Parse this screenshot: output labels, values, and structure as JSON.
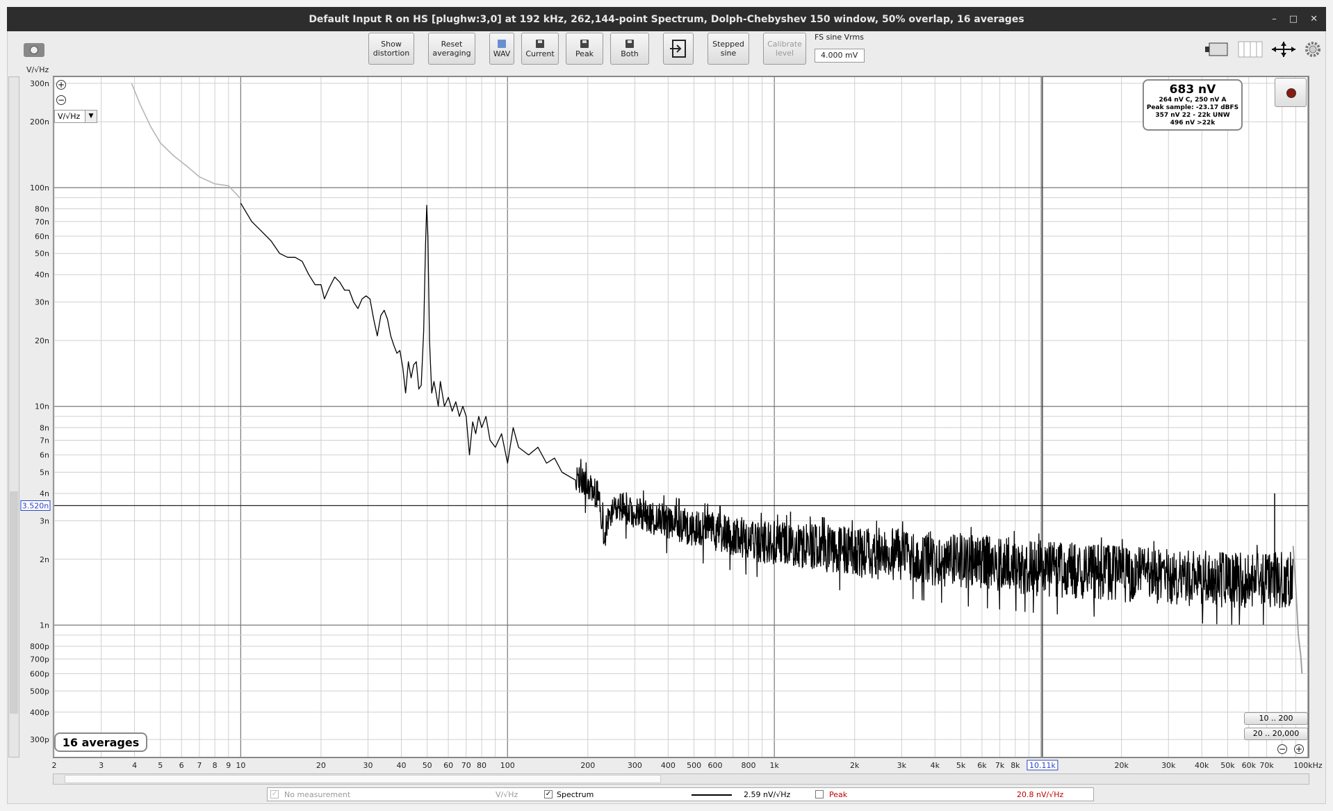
{
  "window": {
    "title": "Default Input R on HS [plughw:3,0] at 192 kHz, 262,144-point Spectrum, Dolph-Chebyshev 150 window, 50% overlap, 16 averages",
    "controls": [
      "–",
      "□",
      "✕"
    ]
  },
  "toolbar": {
    "show_distortion": [
      "Show",
      "distortion"
    ],
    "reset_averaging": [
      "Reset",
      "averaging"
    ],
    "wav": "WAV",
    "current": "Current",
    "peak": "Peak",
    "both": "Both",
    "stepped_sine": [
      "Stepped",
      "sine"
    ],
    "calibrate_level": [
      "Calibrate",
      "level"
    ],
    "fs_label": "FS sine Vrms",
    "fs_value": "4.000 mV"
  },
  "graph": {
    "y_unit": "V/√Hz",
    "units_select": "V/√Hz",
    "cursor_y_readout": "3.520n",
    "cursor_x_readout": "10.11k",
    "averages_badge": "16 averages",
    "range_buttons": [
      "10 .. 200",
      "20 .. 20,000"
    ]
  },
  "info_box": {
    "main": "683 nV",
    "lines": [
      "264 nV C, 250 nV A",
      "Peak sample: -23.17 dBFS",
      "357 nV 22 - 22k UNW",
      "496 nV >22k"
    ]
  },
  "legend": {
    "no_measurement": "No measurement",
    "no_measurement_unit": "V/√Hz",
    "spectrum": "Spectrum",
    "spectrum_value": "2.59 nV/√Hz",
    "peak": "Peak",
    "peak_value": "20.8 nV/√Hz",
    "colors": {
      "spectrum": "#000000",
      "peak": "#c00000",
      "disabled": "#999999"
    }
  },
  "chart_data": {
    "type": "line",
    "scale": {
      "x": "log",
      "y": "log"
    },
    "xlim": [
      2,
      100000
    ],
    "ylim": [
      2.5e-10,
      3.2e-07
    ],
    "x_ticks": [
      {
        "v": 2,
        "t": "2"
      },
      {
        "v": 3,
        "t": "3"
      },
      {
        "v": 4,
        "t": "4"
      },
      {
        "v": 5,
        "t": "5"
      },
      {
        "v": 6,
        "t": "6"
      },
      {
        "v": 7,
        "t": "7"
      },
      {
        "v": 8,
        "t": "8"
      },
      {
        "v": 9,
        "t": "9"
      },
      {
        "v": 10,
        "t": "10"
      },
      {
        "v": 20,
        "t": "20"
      },
      {
        "v": 30,
        "t": "30"
      },
      {
        "v": 40,
        "t": "40"
      },
      {
        "v": 50,
        "t": "50"
      },
      {
        "v": 60,
        "t": "60"
      },
      {
        "v": 70,
        "t": "70"
      },
      {
        "v": 80,
        "t": "80"
      },
      {
        "v": 100,
        "t": "100"
      },
      {
        "v": 200,
        "t": "200"
      },
      {
        "v": 300,
        "t": "300"
      },
      {
        "v": 400,
        "t": "400"
      },
      {
        "v": 500,
        "t": "500"
      },
      {
        "v": 600,
        "t": "600"
      },
      {
        "v": 800,
        "t": "800"
      },
      {
        "v": 1000,
        "t": "1k"
      },
      {
        "v": 2000,
        "t": "2k"
      },
      {
        "v": 3000,
        "t": "3k"
      },
      {
        "v": 4000,
        "t": "4k"
      },
      {
        "v": 5000,
        "t": "5k"
      },
      {
        "v": 6000,
        "t": "6k"
      },
      {
        "v": 7000,
        "t": "7k"
      },
      {
        "v": 8000,
        "t": "8k"
      },
      {
        "v": 20000,
        "t": "20k"
      },
      {
        "v": 30000,
        "t": "30k"
      },
      {
        "v": 40000,
        "t": "40k"
      },
      {
        "v": 50000,
        "t": "50k"
      },
      {
        "v": 60000,
        "t": "60k"
      },
      {
        "v": 70000,
        "t": "70k"
      },
      {
        "v": 100000,
        "t": "100kHz"
      }
    ],
    "y_ticks": [
      {
        "v": 3e-07,
        "t": "300n"
      },
      {
        "v": 2e-07,
        "t": "200n"
      },
      {
        "v": 1e-07,
        "t": "100n"
      },
      {
        "v": 8e-08,
        "t": "80n"
      },
      {
        "v": 7e-08,
        "t": "70n"
      },
      {
        "v": 6e-08,
        "t": "60n"
      },
      {
        "v": 5e-08,
        "t": "50n"
      },
      {
        "v": 4e-08,
        "t": "40n"
      },
      {
        "v": 3e-08,
        "t": "30n"
      },
      {
        "v": 2e-08,
        "t": "20n"
      },
      {
        "v": 1e-08,
        "t": "10n"
      },
      {
        "v": 8e-09,
        "t": "8n"
      },
      {
        "v": 7e-09,
        "t": "7n"
      },
      {
        "v": 6e-09,
        "t": "6n"
      },
      {
        "v": 5e-09,
        "t": "5n"
      },
      {
        "v": 4e-09,
        "t": "4n"
      },
      {
        "v": 3e-09,
        "t": "3n"
      },
      {
        "v": 2e-09,
        "t": "2n"
      },
      {
        "v": 1e-09,
        "t": "1n"
      },
      {
        "v": 8e-10,
        "t": "800p"
      },
      {
        "v": 7e-10,
        "t": "700p"
      },
      {
        "v": 6e-10,
        "t": "600p"
      },
      {
        "v": 5e-10,
        "t": "500p"
      },
      {
        "v": 4e-10,
        "t": "400p"
      },
      {
        "v": 3e-10,
        "t": "300p"
      }
    ],
    "cursor": {
      "x": 10110,
      "y": 3.52e-09
    },
    "series": [
      {
        "name": "Spectrum",
        "color": "#000000",
        "low_freq_grey": [
          [
            3.9,
            3e-07
          ],
          [
            4.2,
            2.4e-07
          ],
          [
            4.6,
            1.9e-07
          ],
          [
            5.0,
            1.6e-07
          ],
          [
            5.6,
            1.4e-07
          ],
          [
            6.3,
            1.25e-07
          ],
          [
            7.0,
            1.12e-07
          ],
          [
            8.0,
            1.04e-07
          ],
          [
            9.0,
            1.02e-07
          ],
          [
            10.0,
            8.9e-08
          ]
        ],
        "points": [
          [
            10,
            8.5e-08
          ],
          [
            11,
            7e-08
          ],
          [
            12,
            6.3e-08
          ],
          [
            13,
            5.7e-08
          ],
          [
            14,
            5e-08
          ],
          [
            15,
            4.8e-08
          ],
          [
            16,
            4.8e-08
          ],
          [
            17,
            4.6e-08
          ],
          [
            18,
            4e-08
          ],
          [
            19,
            3.6e-08
          ],
          [
            20,
            3.6e-08
          ],
          [
            20.6,
            3.1e-08
          ],
          [
            21.5,
            3.5e-08
          ],
          [
            22.5,
            3.9e-08
          ],
          [
            23.5,
            3.7e-08
          ],
          [
            24.5,
            3.4e-08
          ],
          [
            25.5,
            3.4e-08
          ],
          [
            26.5,
            3e-08
          ],
          [
            27.5,
            2.8e-08
          ],
          [
            28.5,
            3.1e-08
          ],
          [
            29.5,
            3.2e-08
          ],
          [
            30.5,
            3.1e-08
          ],
          [
            31.5,
            2.5e-08
          ],
          [
            32.5,
            2.1e-08
          ],
          [
            33.5,
            2.6e-08
          ],
          [
            34.5,
            2.75e-08
          ],
          [
            35.5,
            2.5e-08
          ],
          [
            36.5,
            2.1e-08
          ],
          [
            37.5,
            1.9e-08
          ],
          [
            38.5,
            1.75e-08
          ],
          [
            39.5,
            1.8e-08
          ],
          [
            40.5,
            1.5e-08
          ],
          [
            41.5,
            1.15e-08
          ],
          [
            42.5,
            1.6e-08
          ],
          [
            43.5,
            1.35e-08
          ],
          [
            44.5,
            1.55e-08
          ],
          [
            45.5,
            1.6e-08
          ],
          [
            46.5,
            1.2e-08
          ],
          [
            47.5,
            1.25e-08
          ],
          [
            48.5,
            2.2e-08
          ],
          [
            49.3,
            5.5e-08
          ],
          [
            49.8,
            8.3e-08
          ],
          [
            50.3,
            6e-08
          ],
          [
            51,
            2e-08
          ],
          [
            52,
            1.15e-08
          ],
          [
            53,
            1.3e-08
          ],
          [
            54,
            1.15e-08
          ],
          [
            55,
            1e-08
          ],
          [
            56,
            1.3e-08
          ],
          [
            58,
            1e-08
          ],
          [
            60,
            1.1e-08
          ],
          [
            62,
            9.5e-09
          ],
          [
            64,
            1.05e-08
          ],
          [
            66,
            9e-09
          ],
          [
            68,
            1e-08
          ],
          [
            70,
            9e-09
          ],
          [
            72,
            6e-09
          ],
          [
            74,
            8.5e-09
          ],
          [
            76,
            7.5e-09
          ],
          [
            78,
            9e-09
          ],
          [
            80,
            8e-09
          ],
          [
            83,
            9e-09
          ],
          [
            86,
            7e-09
          ],
          [
            90,
            6.5e-09
          ],
          [
            95,
            7.5e-09
          ],
          [
            100,
            5.5e-09
          ],
          [
            105,
            8e-09
          ],
          [
            110,
            6.5e-09
          ],
          [
            120,
            6e-09
          ],
          [
            130,
            6.5e-09
          ],
          [
            140,
            5.5e-09
          ],
          [
            150,
            5.8e-09
          ],
          [
            160,
            5e-09
          ],
          [
            180,
            4.6e-09
          ],
          [
            200,
            4.2e-09
          ],
          [
            220,
            3.8e-09
          ],
          [
            230,
            2.5e-09
          ],
          [
            250,
            3.5e-09
          ],
          [
            300,
            3.2e-09
          ],
          [
            350,
            3e-09
          ],
          [
            400,
            2.9e-09
          ],
          [
            500,
            2.7e-09
          ],
          [
            600,
            2.6e-09
          ],
          [
            800,
            2.4e-09
          ],
          [
            1000,
            2.3e-09
          ],
          [
            1500,
            2.2e-09
          ],
          [
            2000,
            2.1e-09
          ],
          [
            3000,
            2.05e-09
          ],
          [
            5000,
            1.95e-09
          ],
          [
            8000,
            1.85e-09
          ],
          [
            10000,
            1.8e-09
          ],
          [
            15000,
            1.75e-09
          ],
          [
            20000,
            1.7e-09
          ],
          [
            30000,
            1.65e-09
          ],
          [
            40000,
            1.62e-09
          ],
          [
            50000,
            1.6e-09
          ],
          [
            60000,
            1.6e-09
          ],
          [
            70000,
            1.6e-09
          ],
          [
            80000,
            1.6e-09
          ],
          [
            85000,
            1.6e-09
          ]
        ],
        "noise_band": {
          "from": 230,
          "to": 88000,
          "spread_upper": 1.35,
          "spread_lower": 0.75
        },
        "spikes": [
          [
            1000,
            3e-09
          ],
          [
            1150,
            3.3e-09
          ],
          [
            75000,
            4e-09
          ]
        ],
        "rolloff_grey": [
          [
            88000,
            2.3e-09
          ],
          [
            90000,
            1.5e-09
          ],
          [
            92000,
            9e-10
          ],
          [
            94000,
            7.2e-10
          ],
          [
            95000,
            6e-10
          ]
        ]
      }
    ]
  }
}
